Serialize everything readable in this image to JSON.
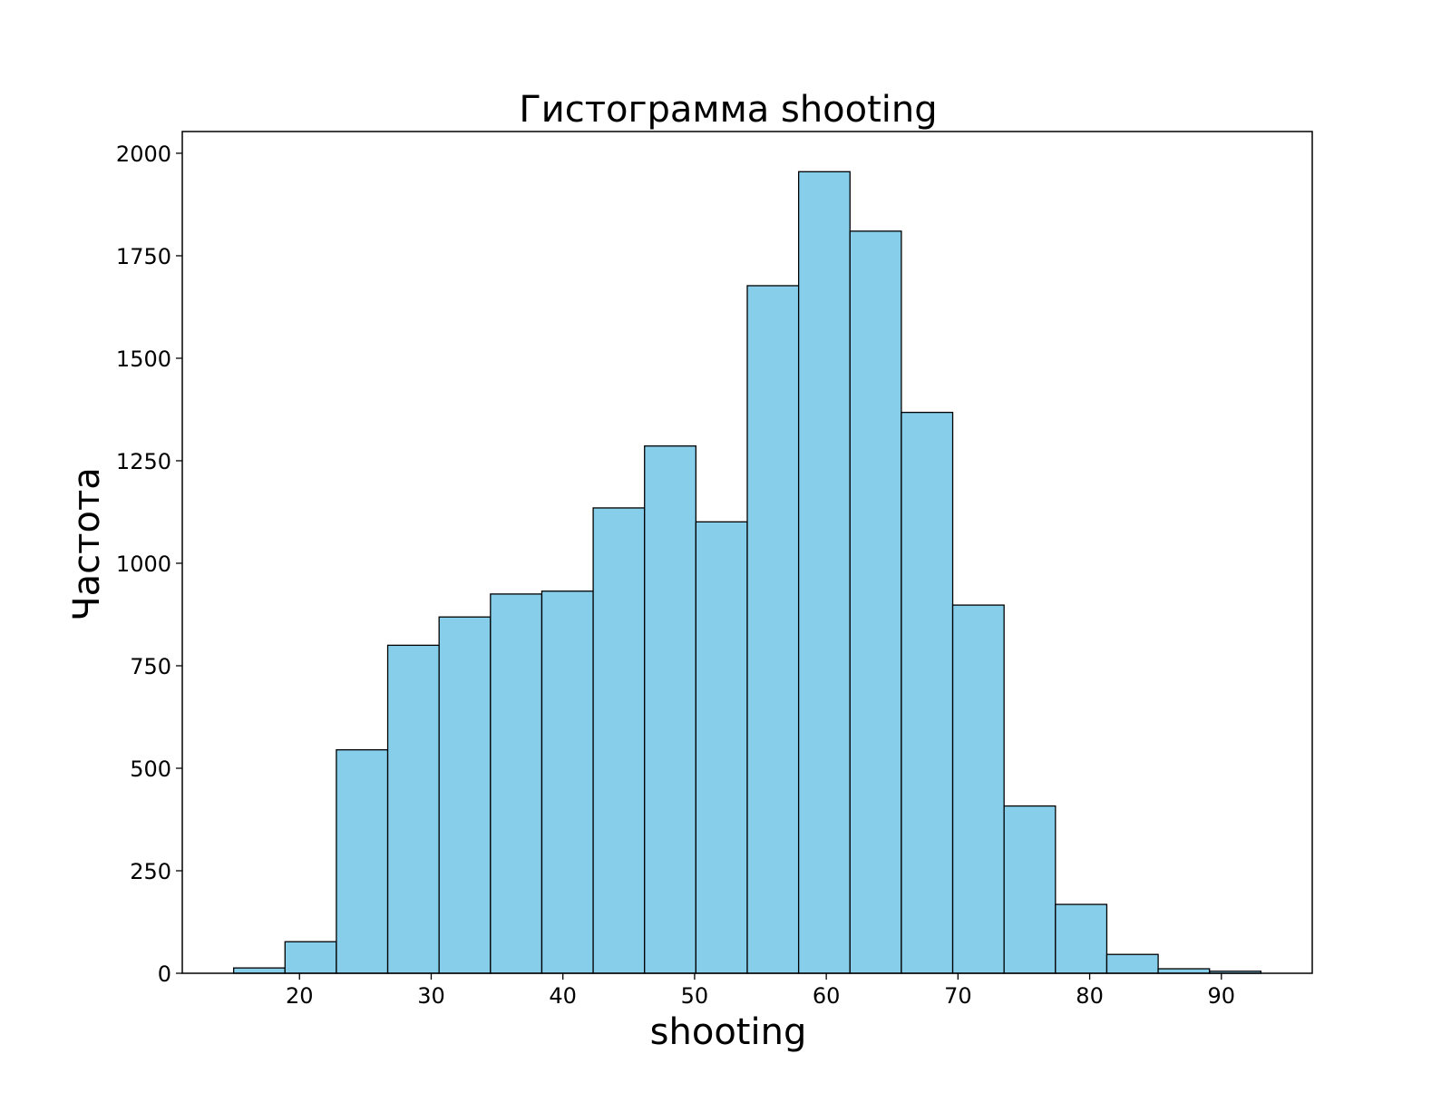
{
  "chart_data": {
    "type": "bar",
    "title": "Гистограмма shooting",
    "xlabel": "shooting",
    "ylabel": "Частота",
    "bin_edges": [
      15,
      18.9,
      22.8,
      26.7,
      30.6,
      34.5,
      38.4,
      42.3,
      46.2,
      50.1,
      54.0,
      57.9,
      61.8,
      65.7,
      69.6,
      73.5,
      77.4,
      81.3,
      85.2,
      89.1,
      93.0
    ],
    "values": [
      13,
      77,
      545,
      800,
      869,
      925,
      932,
      1135,
      1286,
      1101,
      1677,
      1955,
      1810,
      1368,
      898,
      408,
      168,
      46,
      11,
      5
    ],
    "xlim": [
      11.1,
      96.9
    ],
    "ylim": [
      0,
      2053
    ],
    "xticks": [
      20,
      30,
      40,
      50,
      60,
      70,
      80,
      90
    ],
    "yticks": [
      0,
      250,
      500,
      750,
      1000,
      1250,
      1500,
      1750,
      2000
    ],
    "bar_color": "#87CEEB",
    "edge_color": "#000000",
    "grid": false,
    "legend": "none"
  }
}
